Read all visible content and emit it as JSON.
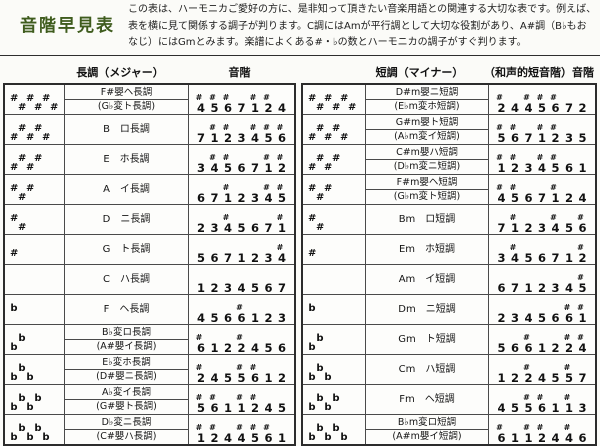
{
  "title": "音階早見表",
  "intro": {
    "line1": "この表は、ハーモニカご愛好の方に、是非知って頂きたい音楽用語との関連する大切な表です。例えば、",
    "line2": "表を横に見て関係する調子が判ります。C調にはAmが平行調として大切な役割があり、A#調（B♭もお",
    "line3": "なじ）にはGmとみます。楽譜によくある#・♭の数とハーモニカの調子がすぐ判ります。"
  },
  "colors": {
    "title_green": "#3f5c1e",
    "text": "#1b1b1b"
  },
  "left_table": {
    "header_key": "長調（メジャー）",
    "header_scale": "音階",
    "rows": [
      {
        "sig": {
          "type": "sharp",
          "count": 6
        },
        "name": "F#嬰ヘ長調",
        "subname": "(G♭変ト長調)",
        "scale": [
          "#4",
          "#5",
          "#6",
          "7",
          "#1",
          "#2",
          "4"
        ]
      },
      {
        "sig": {
          "type": "sharp",
          "count": 5
        },
        "name": "B　ロ長調",
        "subname": null,
        "scale": [
          "7",
          "#1",
          "#2",
          "3",
          "#4",
          "#5",
          "#6"
        ]
      },
      {
        "sig": {
          "type": "sharp",
          "count": 4
        },
        "name": "E　ホ長調",
        "subname": null,
        "scale": [
          "3",
          "#4",
          "#5",
          "6",
          "7",
          "#1",
          "#2"
        ]
      },
      {
        "sig": {
          "type": "sharp",
          "count": 3
        },
        "name": "A　イ長調",
        "subname": null,
        "scale": [
          "6",
          "7",
          "#1",
          "2",
          "3",
          "#4",
          "#5"
        ]
      },
      {
        "sig": {
          "type": "sharp",
          "count": 2
        },
        "name": "D　ニ長調",
        "subname": null,
        "scale": [
          "2",
          "3",
          "#4",
          "5",
          "6",
          "7",
          "#1"
        ]
      },
      {
        "sig": {
          "type": "sharp",
          "count": 1
        },
        "name": "G　ト長調",
        "subname": null,
        "scale": [
          "5",
          "6",
          "7",
          "1",
          "2",
          "3",
          "#4"
        ]
      },
      {
        "sig": {
          "type": "none",
          "count": 0
        },
        "name": "C　ハ長調",
        "subname": null,
        "scale": [
          "1",
          "2",
          "3",
          "4",
          "5",
          "6",
          "7"
        ]
      },
      {
        "sig": {
          "type": "flat",
          "count": 1
        },
        "name": "F　ヘ長調",
        "subname": null,
        "scale": [
          "4",
          "5",
          "6",
          "#6",
          "1",
          "2",
          "3"
        ]
      },
      {
        "sig": {
          "type": "flat",
          "count": 2
        },
        "name": "B♭変ロ長調",
        "subname": "(A#嬰イ長調)",
        "scale": [
          "#6",
          "1",
          "2",
          "#2",
          "4",
          "5",
          "6"
        ]
      },
      {
        "sig": {
          "type": "flat",
          "count": 3
        },
        "name": "E♭変ホ長調",
        "subname": "(D#嬰ニ長調)",
        "scale": [
          "#2",
          "4",
          "5",
          "#5",
          "#6",
          "1",
          "2"
        ]
      },
      {
        "sig": {
          "type": "flat",
          "count": 4
        },
        "name": "A♭変イ長調",
        "subname": "(G#嬰ト長調)",
        "scale": [
          "#5",
          "#6",
          "1",
          "#1",
          "#2",
          "4",
          "5"
        ]
      },
      {
        "sig": {
          "type": "flat",
          "count": 5
        },
        "name": "D♭変ニ長調",
        "subname": "(C#嬰ハ長調)",
        "scale": [
          "#1",
          "#2",
          "4",
          "#4",
          "#5",
          "#6",
          "1"
        ]
      }
    ]
  },
  "right_table": {
    "header_key": "短調（マイナー）",
    "header_scale": "（和声的短音階）音階",
    "rows": [
      {
        "sig": {
          "type": "sharp",
          "count": 6
        },
        "name": "D#m嬰ニ短調",
        "subname": "(E♭m変ホ短調)",
        "scale": [
          "#2",
          "4",
          "#4",
          "#5",
          "#6",
          "7",
          "2"
        ]
      },
      {
        "sig": {
          "type": "sharp",
          "count": 5
        },
        "name": "G#m嬰ト短調",
        "subname": "(A♭m変イ短調)",
        "scale": [
          "#5",
          "#6",
          "7",
          "#1",
          "#2",
          "3",
          "5"
        ]
      },
      {
        "sig": {
          "type": "sharp",
          "count": 4
        },
        "name": "C#m嬰ハ短調",
        "subname": "(D♭m変ニ短調)",
        "scale": [
          "#1",
          "#2",
          "3",
          "#4",
          "#5",
          "6",
          "1"
        ]
      },
      {
        "sig": {
          "type": "sharp",
          "count": 3
        },
        "name": "F#m嬰ヘ短調",
        "subname": "(G♭m変ト短調)",
        "scale": [
          "#4",
          "#5",
          "6",
          "7",
          "#1",
          "2",
          "4"
        ]
      },
      {
        "sig": {
          "type": "sharp",
          "count": 2
        },
        "name": "Bm　ロ短調",
        "subname": null,
        "scale": [
          "7",
          "#1",
          "2",
          "3",
          "#4",
          "5",
          "#6"
        ]
      },
      {
        "sig": {
          "type": "sharp",
          "count": 1
        },
        "name": "Em　ホ短調",
        "subname": null,
        "scale": [
          "3",
          "#4",
          "5",
          "6",
          "7",
          "1",
          "#2"
        ]
      },
      {
        "sig": {
          "type": "none",
          "count": 0
        },
        "name": "Am　イ短調",
        "subname": null,
        "scale": [
          "6",
          "7",
          "1",
          "2",
          "3",
          "4",
          "#5"
        ]
      },
      {
        "sig": {
          "type": "flat",
          "count": 1
        },
        "name": "Dm　ニ短調",
        "subname": null,
        "scale": [
          "2",
          "3",
          "4",
          "5",
          "6",
          "#6",
          "#1"
        ]
      },
      {
        "sig": {
          "type": "flat",
          "count": 2
        },
        "name": "Gm　ト短調",
        "subname": null,
        "scale": [
          "5",
          "6",
          "#6",
          "1",
          "2",
          "#2",
          "#4"
        ]
      },
      {
        "sig": {
          "type": "flat",
          "count": 3
        },
        "name": "Cm　ハ短調",
        "subname": null,
        "scale": [
          "1",
          "2",
          "#2",
          "4",
          "5",
          "#5",
          "7"
        ]
      },
      {
        "sig": {
          "type": "flat",
          "count": 4
        },
        "name": "Fm　ヘ短調",
        "subname": null,
        "scale": [
          "4",
          "5",
          "#5",
          "#6",
          "1",
          "#1",
          "3"
        ]
      },
      {
        "sig": {
          "type": "flat",
          "count": 5
        },
        "name": "B♭m変ロ短調",
        "subname": "(A#m嬰イ短調)",
        "scale": [
          "#6",
          "1",
          "#1",
          "#2",
          "4",
          "#4",
          "6"
        ]
      }
    ]
  }
}
